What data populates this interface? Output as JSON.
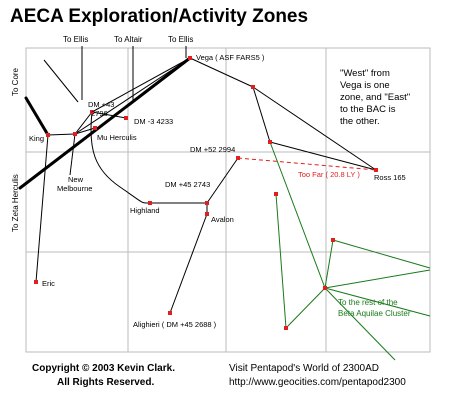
{
  "title": "AECA Exploration/Activity Zones",
  "directions": {
    "to_ellis_1": "To Ellis",
    "to_altair": "To Altair",
    "to_ellis_2": "To Ellis",
    "to_core": "To Core",
    "to_zeta_herculis": "To Zeta Herculis"
  },
  "stars": {
    "vega": "Vega ( ASF FARS5 )",
    "dm43_a": "DM +43",
    "dm43_b": "2796",
    "dm_3": "DM -3 4233",
    "mu_herculis": "Mu Herculis",
    "king": "King",
    "new_melbourne_a": "New",
    "new_melbourne_b": "Melbourne",
    "dm52": "DM +52 2994",
    "ross165": "Ross 165",
    "dm45_2743": "DM +45 2743",
    "highland": "Highland",
    "avalon": "Avalon",
    "eric": "Eric",
    "alighieri": "Alighieri ( DM +45 2688 )"
  },
  "annotations": {
    "too_far": "Too Far ( 20.8 LY )",
    "note_lines": [
      "\"West\" from",
      "Vega is one",
      "zone, and \"East\"",
      "to the BAC is",
      "the other."
    ],
    "beta_aquilae_lines": [
      "To the rest of the",
      "Beta Aquilae Cluster"
    ]
  },
  "footer": {
    "copyright_line1": "Copyright © 2003 Kevin Clark.",
    "copyright_line2": "All Rights Reserved.",
    "site_line1": "Visit Pentapod's World of 2300AD",
    "site_line2": "http://www.geocities.com/pentapod2300"
  },
  "colors": {
    "link": "#000000",
    "star": "#e02020",
    "too_far_link": "#e02020",
    "beta_aquilae_link": "#1a7a1a",
    "grid": "#bbbbbb"
  }
}
